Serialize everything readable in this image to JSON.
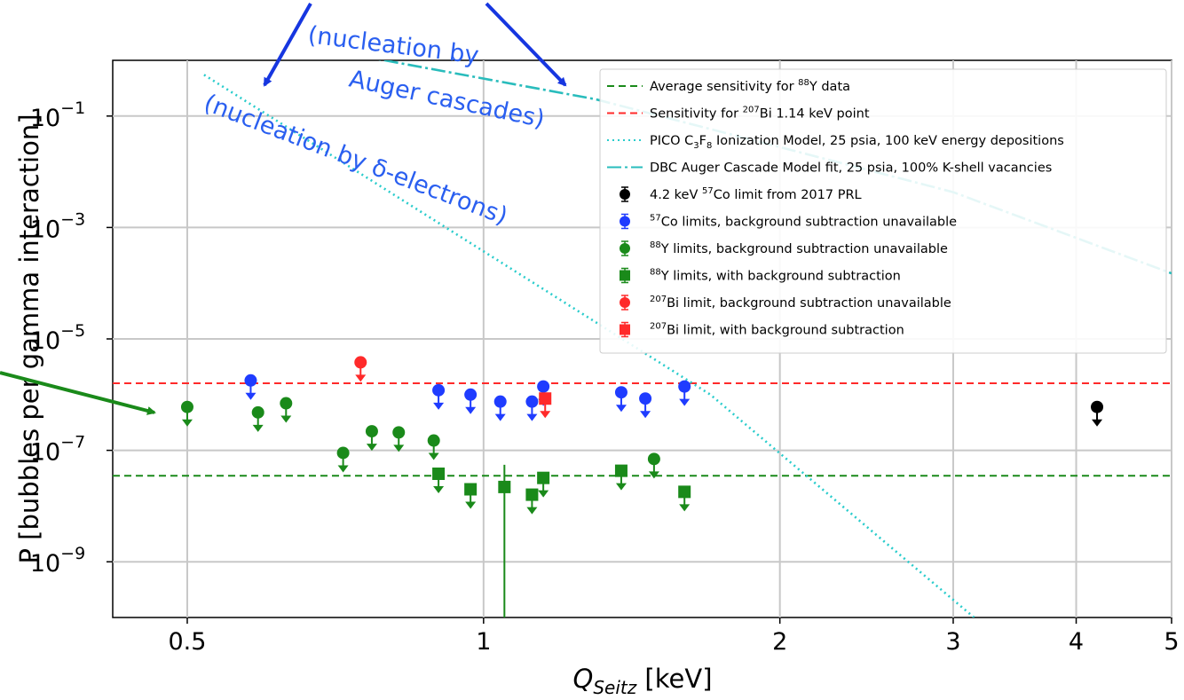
{
  "chart_data": {
    "type": "scatter",
    "title": "",
    "xlabel": {
      "main": "Q",
      "sub": "Seitz",
      "rest": " [keV]"
    },
    "ylabel": "P [bubbles per gamma interaction]",
    "xscale": "log",
    "yscale": "log",
    "xlim": [
      0.42,
      5
    ],
    "ylim": [
      1e-10,
      1
    ],
    "grid": "major",
    "legend_position": "top-right",
    "x_ticks": [
      {
        "value": 0.5,
        "label": "0.5"
      },
      {
        "value": 1,
        "label": "1"
      },
      {
        "value": 2,
        "label": "2"
      },
      {
        "value": 3,
        "label": "3"
      },
      {
        "value": 4,
        "label": "4"
      },
      {
        "value": 5,
        "label": "5"
      }
    ],
    "y_ticks": [
      {
        "value": 0.1,
        "base": "10",
        "exp": "−1"
      },
      {
        "value": 0.001,
        "base": "10",
        "exp": "−3"
      },
      {
        "value": 1e-05,
        "base": "10",
        "exp": "−5"
      },
      {
        "value": 1e-07,
        "base": "10",
        "exp": "−7"
      },
      {
        "value": 1e-09,
        "base": "10",
        "exp": "−9"
      }
    ],
    "lines": [
      {
        "id": "avg88y",
        "kind": "hline",
        "y": 3.5e-08,
        "color": "#1a8a1a",
        "dash": "8,5"
      },
      {
        "id": "bi207",
        "kind": "hline",
        "y": 1.6e-06,
        "color": "#ff2a2a",
        "dash": "8,5"
      },
      {
        "id": "pico",
        "kind": "curve",
        "color": "#29cccc",
        "dash": "2,4",
        "points": [
          [
            0.52,
            0.55
          ],
          [
            1.7,
            1e-06
          ],
          [
            3.15,
            1e-10
          ]
        ]
      },
      {
        "id": "dbc",
        "kind": "curve",
        "color": "#29bcbc",
        "dash": "16,4,3,4",
        "points": [
          [
            0.75,
            1.2
          ],
          [
            1.3,
            0.2
          ],
          [
            3.0,
            0.0043
          ],
          [
            5.0,
            0.00015
          ]
        ]
      }
    ],
    "series": [
      {
        "id": "co57_2017",
        "marker": "circle",
        "color": "#000000",
        "upper_limit": true,
        "points": [
          [
            4.2,
            6e-07
          ]
        ]
      },
      {
        "id": "co57",
        "marker": "circle",
        "color": "#1f3cff",
        "upper_limit": true,
        "points": [
          [
            0.58,
            1.8e-06
          ],
          [
            0.9,
            1.2e-06
          ],
          [
            0.97,
            1e-06
          ],
          [
            1.04,
            7.5e-07
          ],
          [
            1.12,
            7.5e-07
          ],
          [
            1.15,
            1.4e-06
          ],
          [
            1.38,
            1.1e-06
          ],
          [
            1.46,
            8.5e-07
          ],
          [
            1.6,
            1.4e-06
          ]
        ]
      },
      {
        "id": "y88",
        "marker": "circle",
        "color": "#1a8a1a",
        "upper_limit": true,
        "points": [
          [
            0.5,
            6e-07
          ],
          [
            0.59,
            4.8e-07
          ],
          [
            0.63,
            7e-07
          ],
          [
            0.72,
            9e-08
          ],
          [
            0.77,
            2.2e-07
          ],
          [
            0.82,
            2.1e-07
          ],
          [
            0.89,
            1.5e-07
          ],
          [
            1.49,
            7e-08
          ]
        ]
      },
      {
        "id": "y88_bs",
        "marker": "square",
        "color": "#1a8a1a",
        "upper_limit": true,
        "points": [
          [
            0.9,
            3.8e-08
          ],
          [
            0.97,
            2e-08
          ],
          [
            1.15,
            3.2e-08
          ],
          [
            1.38,
            4.3e-08
          ],
          [
            1.12,
            1.6e-08
          ],
          [
            1.6,
            1.8e-08
          ]
        ]
      },
      {
        "id": "y88_bs_err",
        "marker": "square",
        "color": "#1a8a1a",
        "upper_limit": false,
        "points": [
          [
            1.05,
            2.2e-08
          ]
        ],
        "errbar": [
          1e-10,
          5.5e-08
        ]
      },
      {
        "id": "bi207",
        "marker": "circle",
        "color": "#ff2a2a",
        "upper_limit": true,
        "points": [
          [
            0.75,
            3.8e-06
          ]
        ]
      },
      {
        "id": "bi207_bs",
        "marker": "square",
        "color": "#ff2a2a",
        "upper_limit": true,
        "points": [
          [
            1.155,
            8.5e-07
          ]
        ]
      }
    ],
    "legend": [
      {
        "type": "line",
        "color": "#1a8a1a",
        "dash": "8,5",
        "parts": [
          {
            "t": "Average sensitivity for "
          },
          {
            "t": "88",
            "sup": true
          },
          {
            "t": "Y data"
          }
        ]
      },
      {
        "type": "line",
        "color": "#ff2a2a",
        "dash": "8,5",
        "parts": [
          {
            "t": "Sensitivity for "
          },
          {
            "t": "207",
            "sup": true
          },
          {
            "t": "Bi 1.14 keV point"
          }
        ]
      },
      {
        "type": "line",
        "color": "#29cccc",
        "dash": "2,4",
        "parts": [
          {
            "t": "PICO C"
          },
          {
            "t": "3",
            "sub": true
          },
          {
            "t": "F"
          },
          {
            "t": "8",
            "sub": true
          },
          {
            "t": " Ionization Model, 25 psia, 100 keV energy depositions"
          }
        ]
      },
      {
        "type": "line",
        "color": "#29bcbc",
        "dash": "16,4,3,4",
        "parts": [
          {
            "t": "DBC Auger Cascade Model fit, 25 psia, 100% K-shell vacancies"
          }
        ]
      },
      {
        "type": "circle",
        "color": "#000000",
        "parts": [
          {
            "t": "4.2 keV "
          },
          {
            "t": "57",
            "sup": true
          },
          {
            "t": "Co limit from 2017 PRL"
          }
        ]
      },
      {
        "type": "circle",
        "color": "#1f3cff",
        "parts": [
          {
            "t": "57",
            "sup": true
          },
          {
            "t": "Co limits, background subtraction unavailable"
          }
        ]
      },
      {
        "type": "circle",
        "color": "#1a8a1a",
        "parts": [
          {
            "t": "88",
            "sup": true
          },
          {
            "t": "Y limits, background subtraction unavailable"
          }
        ]
      },
      {
        "type": "square",
        "color": "#1a8a1a",
        "parts": [
          {
            "t": "88",
            "sup": true
          },
          {
            "t": "Y limits, with background subtraction"
          }
        ]
      },
      {
        "type": "circle",
        "color": "#ff2a2a",
        "parts": [
          {
            "t": "207",
            "sup": true
          },
          {
            "t": "Bi limit, background subtraction unavailable"
          }
        ]
      },
      {
        "type": "square",
        "color": "#ff2a2a",
        "parts": [
          {
            "t": "207",
            "sup": true
          },
          {
            "t": "Bi limit, with background subtraction"
          }
        ]
      }
    ],
    "annotations": [
      {
        "id": "auger-1",
        "text": "(nucleation by",
        "rotate": 7
      },
      {
        "id": "auger-2",
        "text": "Auger cascades)",
        "rotate": 12
      },
      {
        "id": "delta",
        "text": "(nucleation by δ-electrons)",
        "rotate": 21
      }
    ]
  }
}
